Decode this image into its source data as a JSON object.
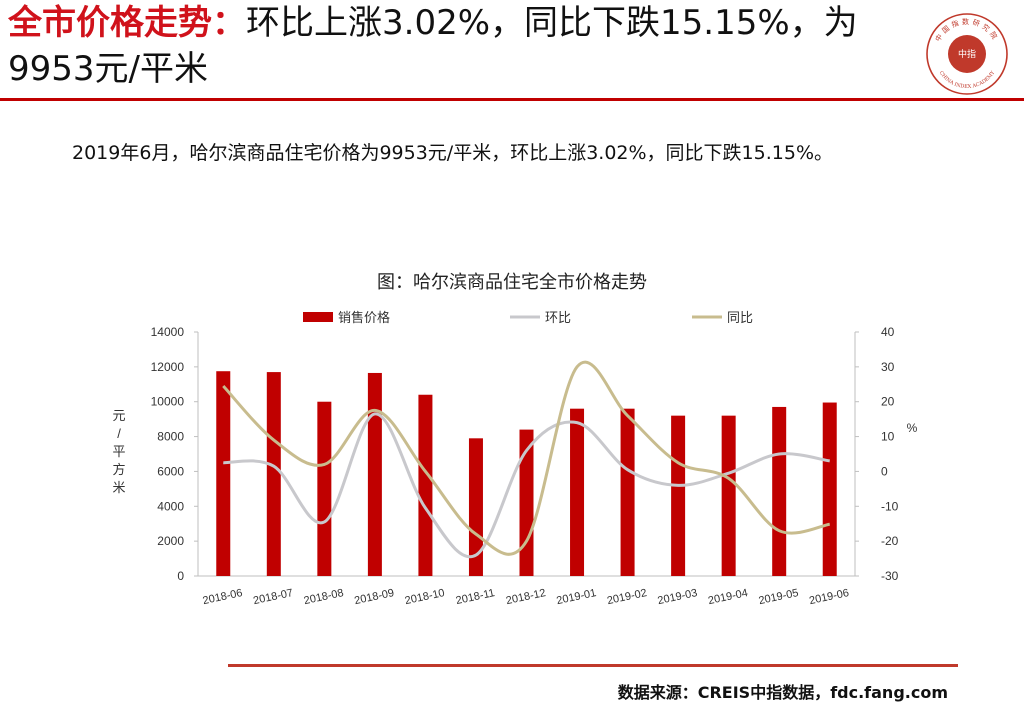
{
  "headline": {
    "title_red": "全市价格走势：",
    "title_rest": "环比上涨3.02%，同比下跌15.15%，为9953元/平米"
  },
  "logo": {
    "icon": "china-index-academy-seal-icon",
    "color": "#c0392b",
    "text_top": "中国指数研究院",
    "text_center": "中指",
    "text_bottom": "CHINA INDEX ACADEMY"
  },
  "summary": "2019年6月，哈尔滨商品住宅价格为9953元/平米，环比上涨3.02%，同比下跌15.15%。",
  "chart_data": {
    "type": "bar",
    "title": "图：哈尔滨商品住宅全市价格走势",
    "categories": [
      "2018-06",
      "2018-07",
      "2018-08",
      "2018-09",
      "2018-10",
      "2018-11",
      "2018-12",
      "2019-01",
      "2019-02",
      "2019-03",
      "2019-04",
      "2019-05",
      "2019-06"
    ],
    "series": [
      {
        "name": "销售价格",
        "type": "bar",
        "axis": "left",
        "color": "#c00000",
        "values": [
          11750,
          11700,
          10000,
          11650,
          10400,
          7900,
          8400,
          9600,
          9600,
          9200,
          9200,
          9700,
          9953
        ]
      },
      {
        "name": "环比",
        "type": "line",
        "axis": "right",
        "color": "#c8c8cc",
        "values": [
          2.5,
          1.5,
          -14.5,
          16.5,
          -10.5,
          -24.0,
          6.0,
          14.0,
          0.5,
          -4.0,
          -0.5,
          5.0,
          3.02
        ]
      },
      {
        "name": "同比",
        "type": "line",
        "axis": "right",
        "color": "#c8bc8e",
        "values": [
          24.5,
          9.0,
          2.0,
          17.5,
          0.0,
          -18.0,
          -20.0,
          30.0,
          16.0,
          2.5,
          -2.0,
          -17.0,
          -15.15
        ]
      }
    ],
    "y_left": {
      "label": "元/平方米",
      "min": 0,
      "max": 14000,
      "ticks": [
        "0",
        "2000",
        "4000",
        "6000",
        "8000",
        "10000",
        "12000",
        "14000"
      ]
    },
    "y_right": {
      "label": "%",
      "min": -30,
      "max": 40,
      "ticks": [
        "-30",
        "-20",
        "-10",
        "0",
        "10",
        "20",
        "30",
        "40"
      ]
    },
    "legend_position": "top",
    "grid": false
  },
  "source": "数据来源：CREIS中指数据，fdc.fang.com"
}
